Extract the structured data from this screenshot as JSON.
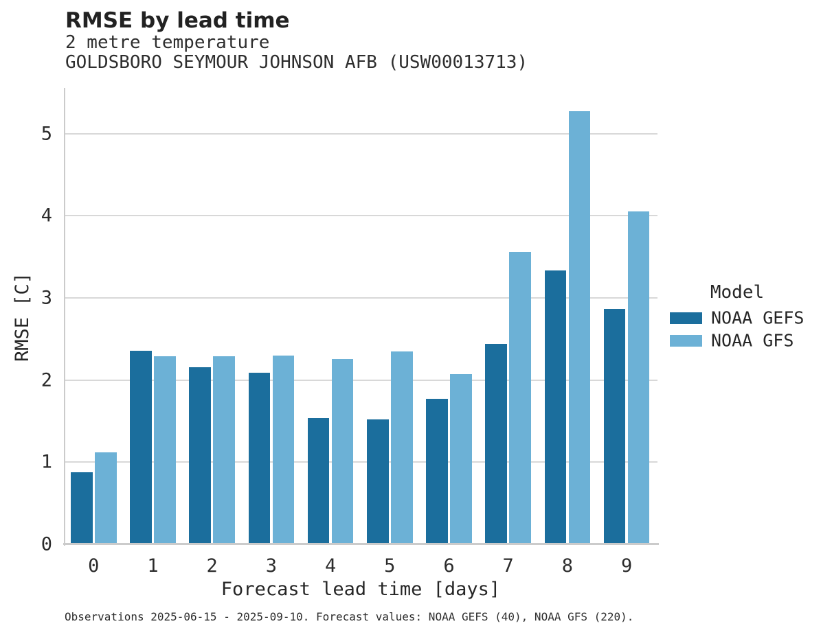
{
  "chart_data": {
    "type": "bar",
    "title": "RMSE by lead time",
    "subtitle": [
      "2 metre temperature",
      "GOLDSBORO SEYMOUR JOHNSON AFB (USW00013713)"
    ],
    "categories": [
      "0",
      "1",
      "2",
      "3",
      "4",
      "5",
      "6",
      "7",
      "8",
      "9"
    ],
    "series": [
      {
        "name": "NOAA GEFS",
        "color": "#1b6e9d",
        "values": [
          0.88,
          2.36,
          2.16,
          2.09,
          1.54,
          1.52,
          1.77,
          2.44,
          3.33,
          2.87
        ]
      },
      {
        "name": "NOAA GFS",
        "color": "#6cb1d6",
        "values": [
          1.12,
          2.29,
          2.29,
          2.3,
          2.26,
          2.35,
          2.07,
          3.56,
          5.27,
          4.05
        ]
      }
    ],
    "xlabel": "Forecast lead time [days]",
    "ylabel": "RMSE [C]",
    "ylim": [
      0,
      5.54
    ],
    "yticks": [
      0,
      1,
      2,
      3,
      4,
      5
    ],
    "grid": true,
    "grid_color": "#d8d8d8",
    "legend_title": "Model",
    "legend_position": "right of plot"
  },
  "footer": {
    "note": "Observations 2025-06-15 - 2025-09-10. Forecast values: NOAA GEFS (40), NOAA GFS (220)."
  }
}
